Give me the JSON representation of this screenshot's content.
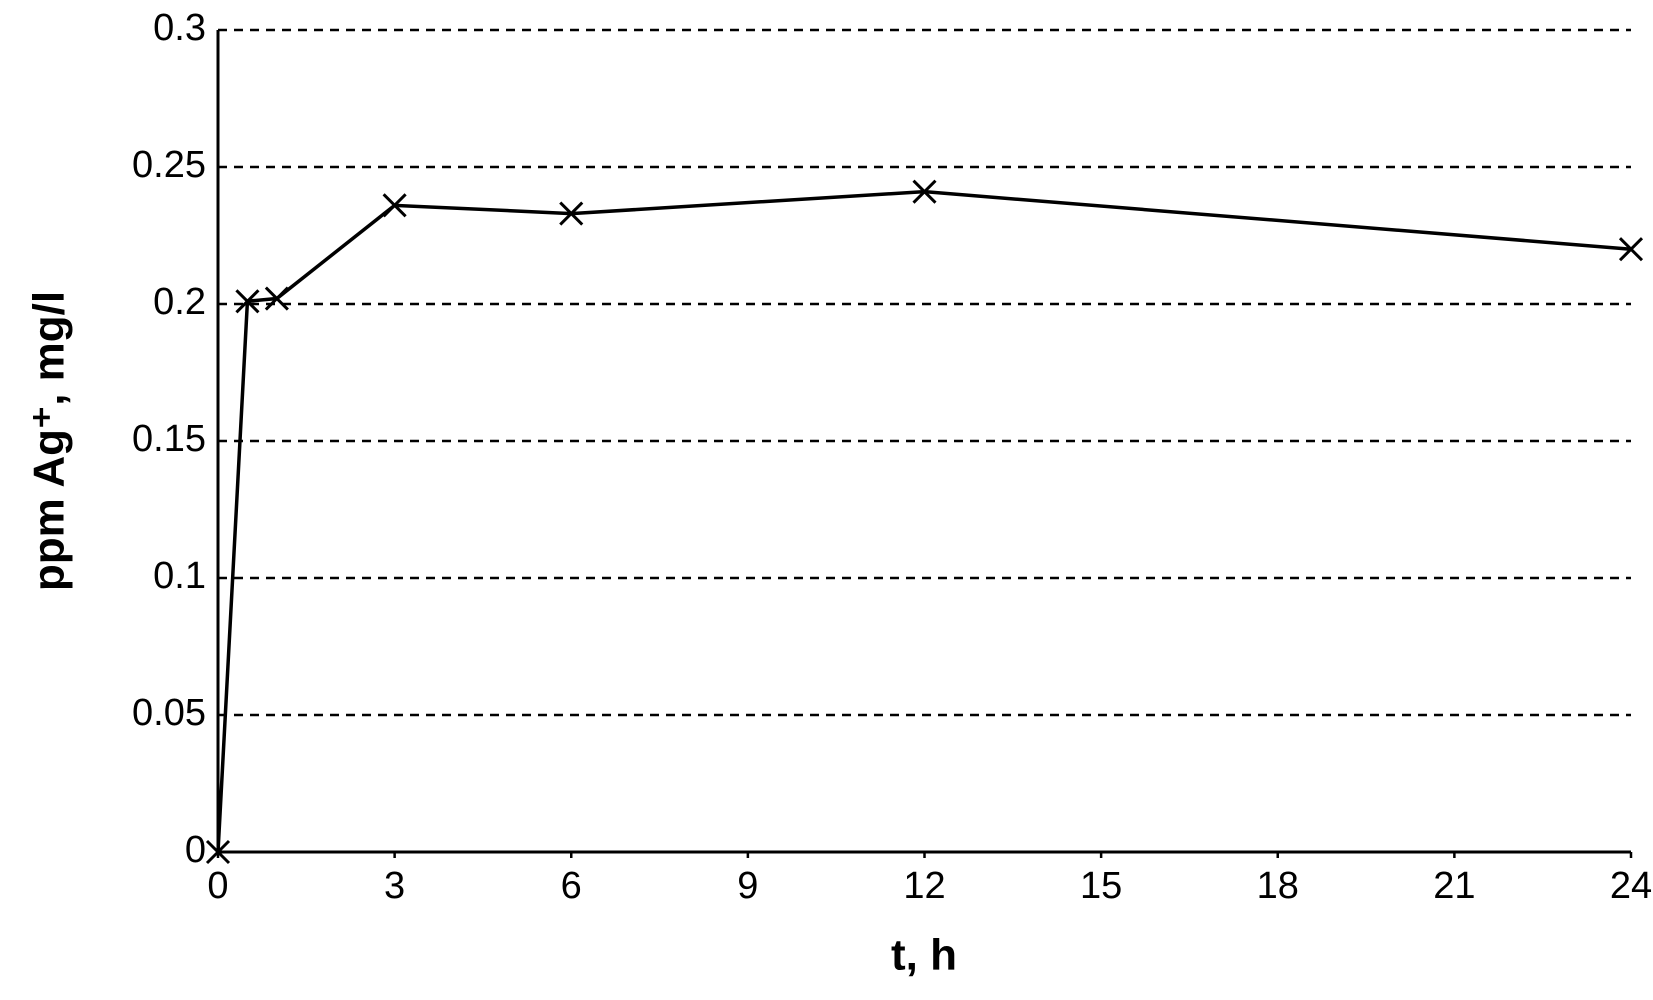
{
  "chart_data": {
    "type": "line",
    "xlabel": "t, h",
    "ylabel": "ppm Ag⁺, mg/l",
    "x": [
      0,
      0.5,
      1,
      3,
      6,
      12,
      24
    ],
    "series": [
      {
        "color": "#000000",
        "marker": "x",
        "values": [
          0,
          0.201,
          0.202,
          0.236,
          0.233,
          0.241,
          0.22
        ]
      }
    ],
    "xlim": [
      0,
      24
    ],
    "xticks": [
      0,
      3,
      6,
      9,
      12,
      15,
      18,
      21,
      24
    ],
    "ylim": [
      0,
      0.3
    ],
    "yticks": [
      0,
      0.05,
      0.1,
      0.15,
      0.2,
      0.25,
      0.3
    ],
    "grid": true
  }
}
